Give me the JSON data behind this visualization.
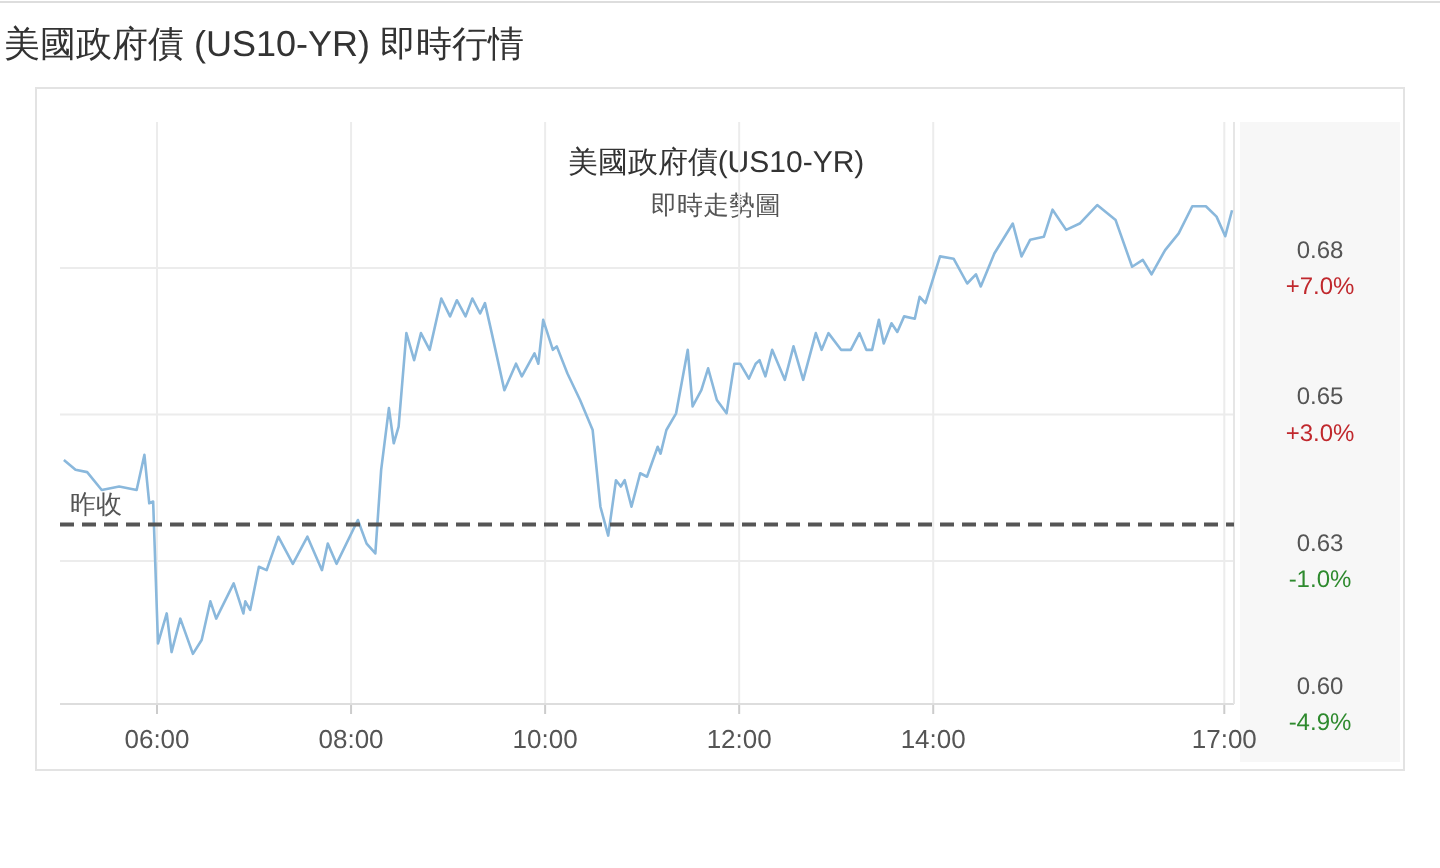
{
  "chart_data": {
    "type": "line",
    "title": "美國政府債(US10-YR)",
    "subtitle": "即時走勢圖",
    "annotations": [
      "美國政府債 (US10-YR) 即時行情"
    ],
    "x": [
      5.04,
      5.16,
      5.28,
      5.43,
      5.61,
      5.79,
      5.87,
      5.92,
      5.96,
      6.01,
      6.1,
      6.15,
      6.24,
      6.37,
      6.46,
      6.55,
      6.61,
      6.79,
      6.89,
      6.91,
      6.96,
      7.05,
      7.13,
      7.25,
      7.4,
      7.55,
      7.7,
      7.76,
      7.85,
      8.07,
      8.16,
      8.25,
      8.31,
      8.39,
      8.44,
      8.49,
      8.57,
      8.65,
      8.72,
      8.81,
      8.93,
      9.02,
      9.09,
      9.18,
      9.25,
      9.33,
      9.38,
      9.45,
      9.58,
      9.7,
      9.76,
      9.89,
      9.93,
      9.98,
      10.08,
      10.12,
      10.23,
      10.36,
      10.49,
      10.57,
      10.65,
      10.73,
      10.78,
      10.82,
      10.89,
      10.98,
      11.05,
      11.16,
      11.19,
      11.25,
      11.35,
      11.47,
      11.52,
      11.61,
      11.68,
      11.77,
      11.87,
      11.95,
      12.01,
      12.1,
      12.17,
      12.21,
      12.27,
      12.34,
      12.47,
      12.56,
      12.66,
      12.79,
      12.85,
      12.92,
      13.05,
      13.15,
      13.24,
      13.31,
      13.37,
      13.44,
      13.49,
      13.57,
      13.63,
      13.7,
      13.81,
      13.86,
      13.92,
      14.07,
      14.21,
      14.35,
      14.44,
      14.49,
      14.63,
      14.82,
      14.91,
      15.0,
      15.14,
      15.23,
      15.37,
      15.51,
      15.69,
      15.88,
      16.05,
      16.16,
      16.25,
      16.39,
      16.53,
      16.67,
      16.81,
      16.92,
      17.01,
      17.08
    ],
    "series": [
      {
        "color": "#8ab8dc",
        "values": [
          0.6462,
          0.6445,
          0.6441,
          0.641,
          0.6416,
          0.641,
          0.6471,
          0.6387,
          0.639,
          0.6144,
          0.6196,
          0.6129,
          0.6187,
          0.6126,
          0.615,
          0.6217,
          0.6187,
          0.6248,
          0.6196,
          0.6217,
          0.6202,
          0.6277,
          0.6271,
          0.6329,
          0.6282,
          0.6329,
          0.6271,
          0.6317,
          0.6282,
          0.6358,
          0.6317,
          0.63,
          0.6445,
          0.6552,
          0.6491,
          0.652,
          0.6682,
          0.6635,
          0.6682,
          0.6653,
          0.6742,
          0.6711,
          0.6739,
          0.6711,
          0.6742,
          0.6716,
          0.6734,
          0.6682,
          0.6583,
          0.6629,
          0.6607,
          0.6647,
          0.6629,
          0.6705,
          0.6653,
          0.6659,
          0.6612,
          0.6566,
          0.6514,
          0.6381,
          0.6331,
          0.6427,
          0.6416,
          0.6427,
          0.6381,
          0.6439,
          0.6433,
          0.6485,
          0.6473,
          0.6514,
          0.6543,
          0.6653,
          0.6555,
          0.6583,
          0.6621,
          0.6566,
          0.6543,
          0.6629,
          0.6629,
          0.6603,
          0.6629,
          0.6635,
          0.6607,
          0.6653,
          0.6601,
          0.6659,
          0.6601,
          0.6682,
          0.6653,
          0.6682,
          0.6653,
          0.6653,
          0.6682,
          0.6653,
          0.6653,
          0.6705,
          0.6664,
          0.6699,
          0.6684,
          0.6711,
          0.6707,
          0.6745,
          0.6734,
          0.6815,
          0.6811,
          0.6768,
          0.6784,
          0.6763,
          0.682,
          0.6872,
          0.6815,
          0.6844,
          0.6849,
          0.6896,
          0.6861,
          0.6872,
          0.6904,
          0.6878,
          0.6797,
          0.6809,
          0.6784,
          0.6826,
          0.6855,
          0.6902,
          0.6902,
          0.6884,
          0.685,
          0.6895
        ]
      }
    ],
    "xlim": [
      5.0,
      17.1
    ],
    "xticks": [
      {
        "value": 6,
        "label": "06:00"
      },
      {
        "value": 8,
        "label": "08:00"
      },
      {
        "value": 10,
        "label": "10:00"
      },
      {
        "value": 12,
        "label": "12:00"
      },
      {
        "value": 14,
        "label": "14:00"
      },
      {
        "value": 17,
        "label": "17:00"
      }
    ],
    "ylim": [
      0.6039,
      0.7048
    ],
    "yticks": [
      {
        "value": 0.6795,
        "label": "0.68"
      },
      {
        "value": 0.6541,
        "label": "0.65"
      },
      {
        "value": 0.6287,
        "label": "0.63"
      },
      {
        "value": 0.6039,
        "label": "0.60"
      }
    ],
    "y2lim": [
      -4.9,
      11.0
    ],
    "y2ticks": [
      {
        "value": 7.0,
        "label": "+7.0%"
      },
      {
        "value": 3.0,
        "label": "+3.0%"
      },
      {
        "value": -1.0,
        "label": "-1.0%"
      },
      {
        "value": -4.9,
        "label": "-4.9%"
      }
    ],
    "ref_lines": [
      {
        "axis": "y",
        "value": 0.635,
        "label": "昨收",
        "color": "#555555",
        "line_style": "dashed"
      }
    ],
    "grid": true
  }
}
